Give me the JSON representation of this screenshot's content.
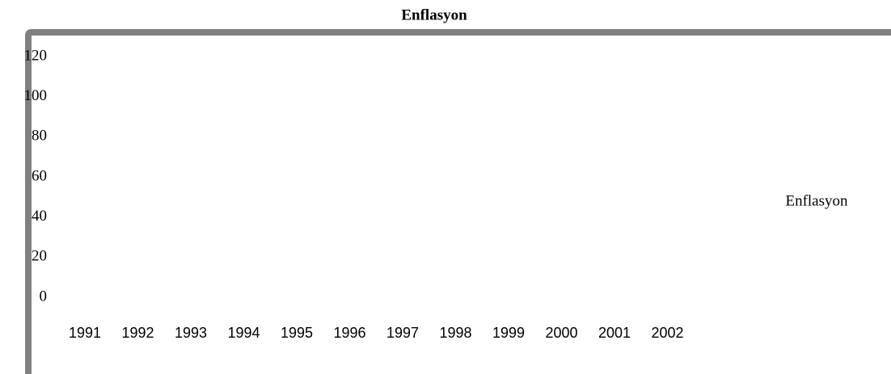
{
  "chart_data": {
    "type": "line",
    "title": "Enflasyon",
    "categories": [
      "1991",
      "1992",
      "1993",
      "1994",
      "1995",
      "1996",
      "1997",
      "1998",
      "1999",
      "2000",
      "2001",
      "2002"
    ],
    "series": [
      {
        "name": "Enflasyon",
        "values": [
          null,
          null,
          null,
          null,
          null,
          null,
          null,
          null,
          null,
          null,
          null,
          null
        ]
      }
    ],
    "ylim": [
      0,
      120
    ],
    "yticks": [
      0,
      20,
      40,
      60,
      80,
      100,
      120
    ]
  }
}
